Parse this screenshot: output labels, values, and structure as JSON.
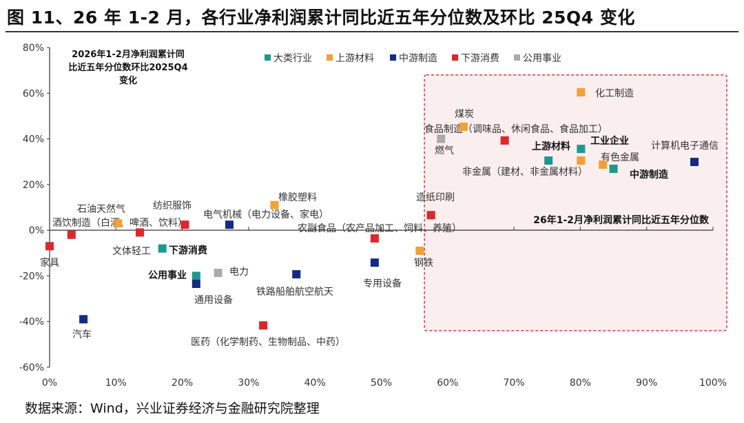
{
  "title": "图 11、26 年 1-2 月，各行业净利润累计同比近五年分位数及环比 25Q4 变化",
  "source": "数据来源：Wind，兴业证券经济与金融研究院整理",
  "chart_data": {
    "type": "scatter",
    "xlabel": "26年1-2月净利润累计同比近五年分位数",
    "ylabel_lines": [
      "2026年1-2月净利润累计同",
      "比近五年分位数环比2025Q4",
      "变化"
    ],
    "xlim": [
      0,
      100
    ],
    "ylim": [
      -60,
      80
    ],
    "x_ticks": [
      "0%",
      "10%",
      "20%",
      "30%",
      "40%",
      "50%",
      "60%",
      "70%",
      "80%",
      "90%",
      "100%"
    ],
    "y_ticks": [
      "80%",
      "60%",
      "40%",
      "20%",
      "0%",
      "-20%",
      "-40%",
      "-60%"
    ],
    "grid": false,
    "legend_position": "top",
    "categories": [
      {
        "key": "major",
        "name": "大类行业",
        "color": "#1a9a8f"
      },
      {
        "key": "upstream",
        "name": "上游材料",
        "color": "#f5a033"
      },
      {
        "key": "midstream",
        "name": "中游制造",
        "color": "#122b86"
      },
      {
        "key": "downstream",
        "name": "下游消费",
        "color": "#e0262a"
      },
      {
        "key": "utility",
        "name": "公用事业",
        "color": "#aaaaaa"
      }
    ],
    "highlight_region": {
      "x": [
        56.5,
        100
      ],
      "y": [
        -44,
        68
      ],
      "border_color": "#d9363e",
      "fill_color": "#fbeeee"
    },
    "points": [
      {
        "name": "家具",
        "category": "downstream",
        "x": 0,
        "y": -7
      },
      {
        "name": "酒饮制造（白酒、啤酒、饮料）",
        "category": "downstream",
        "x": 3.3,
        "y": -2
      },
      {
        "name": "石油天然气",
        "category": "upstream",
        "x": 10.3,
        "y": 3
      },
      {
        "name": "文体轻工",
        "category": "downstream",
        "x": 13.6,
        "y": -1
      },
      {
        "name": "纺织服饰",
        "category": "downstream",
        "x": 20.4,
        "y": 2.4
      },
      {
        "name": "电气机械（电力设备、家电）",
        "category": "midstream",
        "x": 27.1,
        "y": 2.4
      },
      {
        "name": "橡胶塑料",
        "category": "upstream",
        "x": 33.9,
        "y": 11
      },
      {
        "name": "农副食品（农产品加工、饲料、养殖）",
        "category": "downstream",
        "x": 49,
        "y": -3.6
      },
      {
        "name": "下游消费",
        "category": "major",
        "x": 17,
        "y": -8
      },
      {
        "name": "公用事业",
        "category": "major",
        "x": 22.1,
        "y": -20
      },
      {
        "name": "通用设备",
        "category": "midstream",
        "x": 22.1,
        "y": -23.5
      },
      {
        "name": "电力",
        "category": "utility",
        "x": 25.4,
        "y": -18.7
      },
      {
        "name": "铁路船舶航空航天",
        "category": "midstream",
        "x": 37.2,
        "y": -19.3
      },
      {
        "name": "专用设备",
        "category": "midstream",
        "x": 49,
        "y": -14.2
      },
      {
        "name": "钢铁",
        "category": "upstream",
        "x": 55.8,
        "y": -9
      },
      {
        "name": "汽车",
        "category": "midstream",
        "x": 5.1,
        "y": -39
      },
      {
        "name": "医药（化学制药、生物制品、中药）",
        "category": "downstream",
        "x": 32.2,
        "y": -41.7
      },
      {
        "name": "造纸印刷",
        "category": "downstream",
        "x": 57.5,
        "y": 6.6
      },
      {
        "name": "燃气",
        "category": "utility",
        "x": 59,
        "y": 40
      },
      {
        "name": "煤炭",
        "category": "upstream",
        "x": 62.4,
        "y": 45.3
      },
      {
        "name": "食品制造（调味品、休闲食品、食品加工）",
        "category": "downstream",
        "x": 68.6,
        "y": 39.3
      },
      {
        "name": "化工制造",
        "category": "upstream",
        "x": 80.1,
        "y": 60.4
      },
      {
        "name": "工业企业",
        "category": "major",
        "x": 80.1,
        "y": 35.6
      },
      {
        "name": "上游材料",
        "category": "major",
        "x": 75.2,
        "y": 30.5
      },
      {
        "name": "非金属（建材、非金属材料）",
        "category": "upstream",
        "x": 80.1,
        "y": 30.5
      },
      {
        "name": "有色金属",
        "category": "upstream",
        "x": 83.4,
        "y": 28.7
      },
      {
        "name": "中游制造",
        "category": "major",
        "x": 85,
        "y": 26.9
      },
      {
        "name": "计算机电子通信",
        "category": "midstream",
        "x": 97.2,
        "y": 29.9
      }
    ]
  }
}
